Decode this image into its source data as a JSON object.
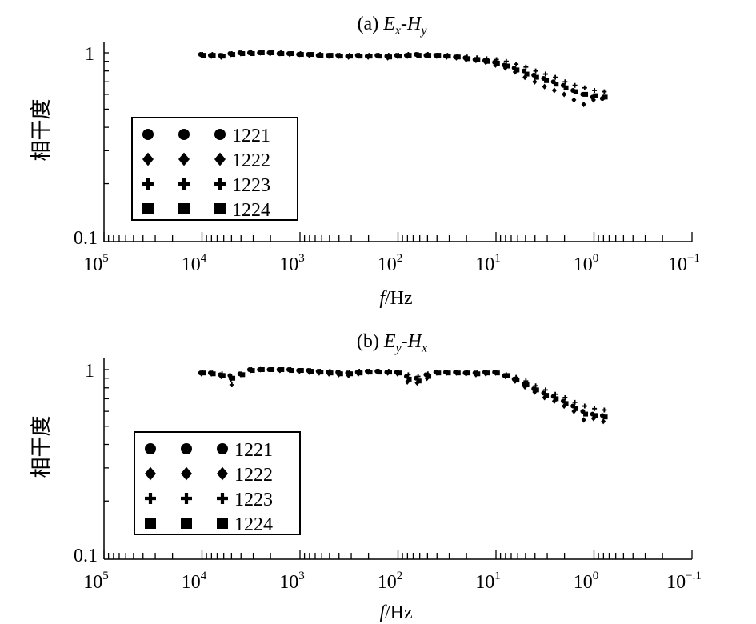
{
  "chart_data": [
    {
      "type": "scatter",
      "panel": "a",
      "title": {
        "prefix": "(a) ",
        "e": "E",
        "e_sub": "x",
        "dash": "-",
        "h": "H",
        "h_sub": "y"
      },
      "xlabel": {
        "f": "f",
        "unit": "/Hz"
      },
      "ylabel": "相干度",
      "xscale": "log",
      "yscale": "log",
      "xlim": [
        100000,
        0.1
      ],
      "ylim": [
        0.1,
        1.2
      ],
      "x_tick_base": "10",
      "x_tick_exponents": [
        "5",
        "4",
        "3",
        "2",
        "1",
        "0",
        "−1"
      ],
      "y_tick_labels": [
        "1",
        "0.1"
      ],
      "legend": {
        "placement": "center-left",
        "entries": [
          "1221",
          "1222",
          "1223",
          "1224"
        ],
        "markers": [
          "circle",
          "diamond",
          "plus",
          "square"
        ]
      },
      "log10_x_start": 4.0,
      "log10_x_step": -0.1,
      "series": [
        {
          "name": "1221",
          "marker": "circle",
          "values": [
            0.98,
            0.97,
            0.97,
            0.99,
            1.0,
            1.0,
            1.0,
            1.0,
            0.99,
            0.99,
            0.98,
            0.98,
            0.97,
            0.97,
            0.97,
            0.96,
            0.97,
            0.96,
            0.97,
            0.96,
            0.97,
            0.97,
            0.98,
            0.97,
            0.97,
            0.96,
            0.95,
            0.94,
            0.92,
            0.91,
            0.89,
            0.86,
            0.83,
            0.8,
            0.76,
            0.73,
            0.7,
            0.67,
            0.63,
            0.6,
            0.58,
            0.57
          ]
        },
        {
          "name": "1222",
          "marker": "diamond",
          "values": [
            0.97,
            0.96,
            0.95,
            0.98,
            0.99,
            1.0,
            1.0,
            0.99,
            0.99,
            0.98,
            0.98,
            0.97,
            0.97,
            0.96,
            0.96,
            0.95,
            0.96,
            0.95,
            0.96,
            0.94,
            0.96,
            0.96,
            0.97,
            0.97,
            0.96,
            0.95,
            0.94,
            0.92,
            0.91,
            0.89,
            0.86,
            0.83,
            0.79,
            0.74,
            0.7,
            0.66,
            0.63,
            0.6,
            0.56,
            0.53,
            0.56,
            0.58
          ]
        },
        {
          "name": "1223",
          "marker": "plus",
          "values": [
            0.98,
            0.98,
            0.97,
            0.99,
            1.0,
            1.0,
            1.0,
            1.0,
            1.0,
            0.99,
            0.99,
            0.98,
            0.98,
            0.97,
            0.97,
            0.97,
            0.97,
            0.97,
            0.97,
            0.97,
            0.97,
            0.98,
            0.98,
            0.98,
            0.97,
            0.97,
            0.96,
            0.95,
            0.94,
            0.93,
            0.92,
            0.9,
            0.87,
            0.84,
            0.8,
            0.77,
            0.74,
            0.7,
            0.67,
            0.65,
            0.63,
            0.62
          ]
        },
        {
          "name": "1224",
          "marker": "square",
          "values": [
            0.97,
            0.97,
            0.96,
            0.98,
            0.99,
            0.99,
            1.0,
            1.0,
            0.99,
            0.99,
            0.98,
            0.98,
            0.97,
            0.97,
            0.96,
            0.96,
            0.96,
            0.96,
            0.96,
            0.95,
            0.96,
            0.97,
            0.97,
            0.97,
            0.97,
            0.96,
            0.95,
            0.93,
            0.92,
            0.9,
            0.88,
            0.85,
            0.81,
            0.77,
            0.74,
            0.71,
            0.68,
            0.65,
            0.62,
            0.6,
            0.59,
            0.58
          ]
        }
      ]
    },
    {
      "type": "scatter",
      "panel": "b",
      "title": {
        "prefix": "(b) ",
        "e": "E",
        "e_sub": "y",
        "dash": "-",
        "h": "H",
        "h_sub": "x"
      },
      "xlabel": {
        "f": "f",
        "unit": "/Hz"
      },
      "ylabel": "相干度",
      "xscale": "log",
      "yscale": "log",
      "xlim": [
        100000,
        0.1
      ],
      "ylim": [
        0.1,
        1.2
      ],
      "x_tick_base": "10",
      "x_tick_exponents": [
        "5",
        "4",
        "3",
        "2",
        "1",
        "0",
        "−.1"
      ],
      "y_tick_labels": [
        "1",
        "0.1"
      ],
      "legend": {
        "placement": "center-left",
        "entries": [
          "1221",
          "1222",
          "1223",
          "1224"
        ],
        "markers": [
          "circle",
          "diamond",
          "plus",
          "square"
        ]
      },
      "log10_x_start": 4.0,
      "log10_x_step": -0.1,
      "series": [
        {
          "name": "1221",
          "marker": "circle",
          "values": [
            0.96,
            0.96,
            0.94,
            0.93,
            0.95,
            1.0,
            1.0,
            1.0,
            1.0,
            1.0,
            0.99,
            0.99,
            0.98,
            0.97,
            0.97,
            0.96,
            0.97,
            0.98,
            0.98,
            0.97,
            0.97,
            0.92,
            0.9,
            0.94,
            0.97,
            0.97,
            0.97,
            0.96,
            0.96,
            0.97,
            0.97,
            0.93,
            0.89,
            0.84,
            0.79,
            0.75,
            0.72,
            0.68,
            0.64,
            0.6,
            0.58,
            0.57
          ]
        },
        {
          "name": "1222",
          "marker": "diamond",
          "values": [
            0.95,
            0.95,
            0.92,
            0.89,
            0.94,
            0.99,
            1.0,
            1.0,
            0.99,
            0.99,
            0.98,
            0.97,
            0.96,
            0.95,
            0.94,
            0.93,
            0.95,
            0.97,
            0.97,
            0.96,
            0.95,
            0.86,
            0.85,
            0.9,
            0.96,
            0.96,
            0.96,
            0.95,
            0.94,
            0.95,
            0.96,
            0.92,
            0.87,
            0.81,
            0.76,
            0.71,
            0.68,
            0.64,
            0.6,
            0.54,
            0.55,
            0.53
          ]
        },
        {
          "name": "1223",
          "marker": "plus",
          "values": [
            0.97,
            0.96,
            0.95,
            0.83,
            0.95,
            1.0,
            1.0,
            1.0,
            1.0,
            1.0,
            0.99,
            0.99,
            0.98,
            0.98,
            0.97,
            0.97,
            0.98,
            0.98,
            0.98,
            0.98,
            0.97,
            0.94,
            0.92,
            0.95,
            0.97,
            0.97,
            0.97,
            0.97,
            0.96,
            0.97,
            0.97,
            0.94,
            0.91,
            0.87,
            0.82,
            0.78,
            0.74,
            0.71,
            0.67,
            0.64,
            0.62,
            0.61
          ]
        },
        {
          "name": "1224",
          "marker": "square",
          "values": [
            0.96,
            0.95,
            0.93,
            0.9,
            0.94,
            0.99,
            1.0,
            1.0,
            1.0,
            0.99,
            0.99,
            0.98,
            0.97,
            0.96,
            0.95,
            0.95,
            0.96,
            0.97,
            0.97,
            0.97,
            0.96,
            0.89,
            0.87,
            0.92,
            0.96,
            0.96,
            0.96,
            0.96,
            0.95,
            0.96,
            0.96,
            0.93,
            0.88,
            0.83,
            0.78,
            0.73,
            0.7,
            0.66,
            0.62,
            0.58,
            0.57,
            0.56
          ]
        }
      ]
    }
  ]
}
